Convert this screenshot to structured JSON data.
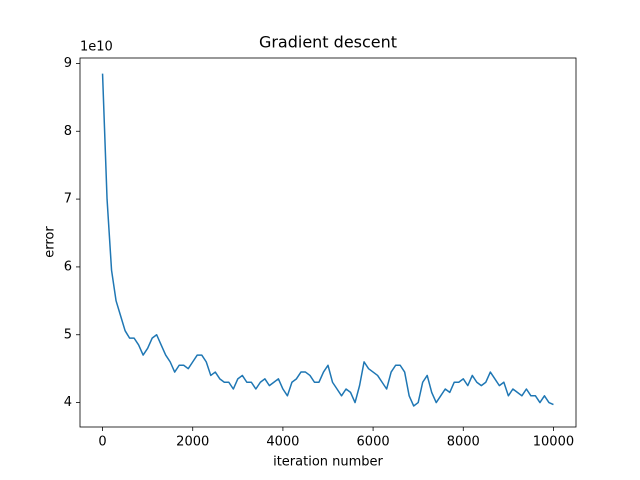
{
  "chart_data": {
    "type": "line",
    "title": "Gradient descent",
    "xlabel": "iteration number",
    "ylabel": "error",
    "y_offset_label": "1e10",
    "x": [
      0,
      100,
      200,
      300,
      400,
      500,
      600,
      700,
      800,
      900,
      1000,
      1100,
      1200,
      1300,
      1400,
      1500,
      1600,
      1700,
      1800,
      1900,
      2000,
      2100,
      2200,
      2300,
      2400,
      2500,
      2600,
      2700,
      2800,
      2900,
      3000,
      3100,
      3200,
      3300,
      3400,
      3500,
      3600,
      3700,
      3800,
      3900,
      4000,
      4100,
      4200,
      4300,
      4400,
      4500,
      4600,
      4700,
      4800,
      4900,
      5000,
      5100,
      5200,
      5300,
      5400,
      5500,
      5600,
      5700,
      5800,
      5900,
      6000,
      6100,
      6200,
      6300,
      6400,
      6500,
      6600,
      6700,
      6800,
      6900,
      7000,
      7100,
      7200,
      7300,
      7400,
      7500,
      7600,
      7700,
      7800,
      7900,
      8000,
      8100,
      8200,
      8300,
      8400,
      8500,
      8600,
      8700,
      8800,
      8900,
      9000,
      9100,
      9200,
      9300,
      9400,
      9500,
      9600,
      9700,
      9800,
      9900,
      10000
    ],
    "series": [
      {
        "name": "error",
        "color": "#1f77b4",
        "values": [
          8.85,
          7.0,
          5.95,
          5.5,
          5.28,
          5.06,
          4.95,
          4.95,
          4.85,
          4.7,
          4.8,
          4.95,
          5.0,
          4.85,
          4.7,
          4.6,
          4.45,
          4.55,
          4.55,
          4.5,
          4.6,
          4.7,
          4.7,
          4.6,
          4.4,
          4.45,
          4.35,
          4.3,
          4.3,
          4.2,
          4.35,
          4.4,
          4.3,
          4.3,
          4.2,
          4.3,
          4.35,
          4.25,
          4.3,
          4.35,
          4.2,
          4.1,
          4.3,
          4.35,
          4.45,
          4.45,
          4.4,
          4.3,
          4.3,
          4.45,
          4.55,
          4.3,
          4.2,
          4.1,
          4.2,
          4.15,
          4.0,
          4.25,
          4.6,
          4.5,
          4.45,
          4.4,
          4.3,
          4.2,
          4.45,
          4.55,
          4.55,
          4.45,
          4.1,
          3.95,
          4.0,
          4.3,
          4.4,
          4.15,
          4.0,
          4.1,
          4.2,
          4.15,
          4.3,
          4.3,
          4.35,
          4.25,
          4.4,
          4.3,
          4.25,
          4.3,
          4.45,
          4.35,
          4.25,
          4.3,
          4.1,
          4.2,
          4.15,
          4.1,
          4.2,
          4.1,
          4.1,
          4.0,
          4.1,
          4.0,
          3.97
        ]
      }
    ],
    "xlim": [
      -500,
      10500
    ],
    "xticks": [
      0,
      2000,
      4000,
      6000,
      8000,
      10000
    ],
    "ylim": [
      3.64,
      9.08
    ],
    "yticks": [
      4,
      5,
      6,
      7,
      8,
      9
    ]
  }
}
